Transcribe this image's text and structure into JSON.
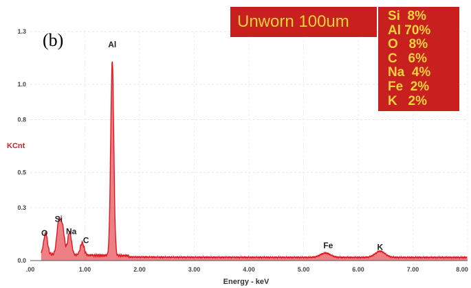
{
  "panel_label": "(b)",
  "legend_box": {
    "title": "Unworn 100um",
    "composition": [
      {
        "element": "Si",
        "percent": "8%"
      },
      {
        "element": "Al",
        "percent": "70%"
      },
      {
        "element": "O",
        "percent": "8%"
      },
      {
        "element": "C",
        "percent": "6%"
      },
      {
        "element": "Na",
        "percent": "4%"
      },
      {
        "element": "Fe",
        "percent": "2%"
      },
      {
        "element": "K",
        "percent": "2%"
      }
    ],
    "colors": {
      "background": "#c8201e",
      "text": "#f7d23b"
    }
  },
  "chart_data": {
    "type": "line",
    "xlabel": "Energy - keV",
    "ylabel": "KCnt",
    "xlim": [
      0.0,
      8.0
    ],
    "ylim": [
      0.0,
      1.3
    ],
    "xticks": [
      ".00",
      "1.00",
      "2.00",
      "3.00",
      "4.00",
      "5.00",
      "6.00",
      "7.00",
      "8.00"
    ],
    "yticks": [
      "0.0",
      "0.3",
      "0.5",
      "0.8",
      "1.0",
      "1.3"
    ],
    "ytick_values": [
      0.0,
      0.3,
      0.5,
      0.8,
      1.0,
      1.3
    ],
    "series_color": "#e0161f",
    "baseline": 0.02,
    "peaks": [
      {
        "x": 0.28,
        "y": 0.12
      },
      {
        "x": 0.52,
        "y": 0.18
      },
      {
        "x": 0.59,
        "y": 0.15
      },
      {
        "x": 0.72,
        "y": 0.13
      },
      {
        "x": 0.95,
        "y": 0.07
      },
      {
        "x": 1.5,
        "y": 1.1
      },
      {
        "x": 5.4,
        "y": 0.025
      },
      {
        "x": 6.4,
        "y": 0.035
      }
    ],
    "peak_labels": [
      {
        "text": "O",
        "x": 0.26,
        "y": 0.14
      },
      {
        "text": "Si",
        "x": 0.52,
        "y": 0.22
      },
      {
        "text": "Na",
        "x": 0.75,
        "y": 0.15
      },
      {
        "text": "C",
        "x": 1.02,
        "y": 0.1
      },
      {
        "text": "Al",
        "x": 1.5,
        "y": 1.21
      },
      {
        "text": "Fe",
        "x": 5.45,
        "y": 0.07
      },
      {
        "text": "K",
        "x": 6.4,
        "y": 0.06
      }
    ]
  }
}
